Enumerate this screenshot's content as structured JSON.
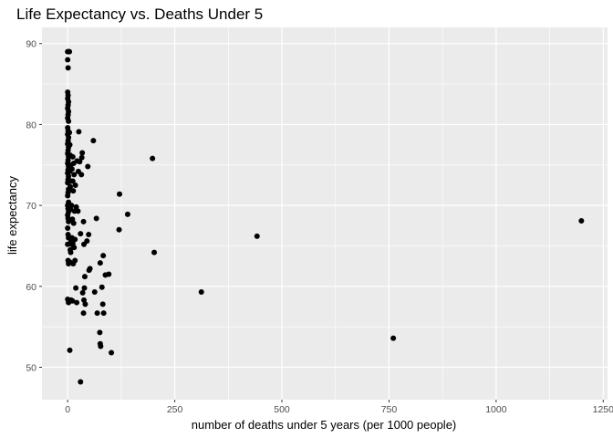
{
  "chart_data": {
    "type": "scatter",
    "title": "Life Expectancy vs. Deaths Under 5",
    "xlabel": "number of deaths under 5 years (per 1000 people)",
    "ylabel": "life expectancy",
    "xlim": [
      -60,
      1260
    ],
    "ylim": [
      46,
      92
    ],
    "xticks": [
      0,
      250,
      500,
      750,
      1000,
      1250
    ],
    "xtick_labels": [
      "0",
      "250",
      "500",
      "750",
      "1000",
      "1250"
    ],
    "yticks": [
      50,
      60,
      70,
      80,
      90
    ],
    "ytick_labels": [
      "50",
      "60",
      "70",
      "80",
      "90"
    ],
    "grid": true,
    "panel_color": "#ebebeb",
    "point_color": "#000000",
    "points": [
      {
        "x": 0,
        "y": 89.0
      },
      {
        "x": 2,
        "y": 89.0
      },
      {
        "x": 4,
        "y": 89.0
      },
      {
        "x": 0,
        "y": 88.0
      },
      {
        "x": 1,
        "y": 87.0
      },
      {
        "x": 0,
        "y": 84.0
      },
      {
        "x": 1,
        "y": 83.6
      },
      {
        "x": 0,
        "y": 83.2
      },
      {
        "x": 2,
        "y": 82.8
      },
      {
        "x": 1,
        "y": 82.4
      },
      {
        "x": 0,
        "y": 82.0
      },
      {
        "x": 2,
        "y": 81.6
      },
      {
        "x": 1,
        "y": 81.2
      },
      {
        "x": 0,
        "y": 80.8
      },
      {
        "x": 2,
        "y": 80.4
      },
      {
        "x": 0,
        "y": 79.6
      },
      {
        "x": 1,
        "y": 79.2
      },
      {
        "x": 0,
        "y": 78.8
      },
      {
        "x": 2,
        "y": 78.4
      },
      {
        "x": 1,
        "y": 78.0
      },
      {
        "x": 0,
        "y": 77.6
      },
      {
        "x": 2,
        "y": 77.2
      },
      {
        "x": 1,
        "y": 76.8
      },
      {
        "x": 0,
        "y": 76.4
      },
      {
        "x": 2,
        "y": 76.0
      },
      {
        "x": 1,
        "y": 75.6
      },
      {
        "x": 0,
        "y": 75.2
      },
      {
        "x": 2,
        "y": 74.8
      },
      {
        "x": 1,
        "y": 74.4
      },
      {
        "x": 0,
        "y": 74.0
      },
      {
        "x": 2,
        "y": 73.6
      },
      {
        "x": 1,
        "y": 73.2
      },
      {
        "x": 0,
        "y": 72.8
      },
      {
        "x": 2,
        "y": 72.0
      },
      {
        "x": 1,
        "y": 71.6
      },
      {
        "x": 0,
        "y": 71.2
      },
      {
        "x": 2,
        "y": 70.4
      },
      {
        "x": 0,
        "y": 70.0
      },
      {
        "x": 1,
        "y": 69.6
      },
      {
        "x": 2,
        "y": 69.2
      },
      {
        "x": 0,
        "y": 68.8
      },
      {
        "x": 1,
        "y": 68.4
      },
      {
        "x": 2,
        "y": 68.0
      },
      {
        "x": 0,
        "y": 67.2
      },
      {
        "x": 1,
        "y": 66.4
      },
      {
        "x": 2,
        "y": 66.0
      },
      {
        "x": 0,
        "y": 65.2
      },
      {
        "x": 1,
        "y": 63.2
      },
      {
        "x": 2,
        "y": 62.8
      },
      {
        "x": 0,
        "y": 58.4
      },
      {
        "x": 2,
        "y": 58.0
      },
      {
        "x": 4,
        "y": 79.0
      },
      {
        "x": 5,
        "y": 77.5
      },
      {
        "x": 6,
        "y": 76.2
      },
      {
        "x": 7,
        "y": 75.0
      },
      {
        "x": 5,
        "y": 74.2
      },
      {
        "x": 8,
        "y": 73.0
      },
      {
        "x": 6,
        "y": 72.3
      },
      {
        "x": 9,
        "y": 70.0
      },
      {
        "x": 7,
        "y": 69.5
      },
      {
        "x": 4,
        "y": 66.0
      },
      {
        "x": 8,
        "y": 65.6
      },
      {
        "x": 9,
        "y": 65.2
      },
      {
        "x": 6,
        "y": 64.5
      },
      {
        "x": 7,
        "y": 64.2
      },
      {
        "x": 5,
        "y": 63.0
      },
      {
        "x": 8,
        "y": 58.3
      },
      {
        "x": 5,
        "y": 52.1
      },
      {
        "x": 12,
        "y": 76.0
      },
      {
        "x": 14,
        "y": 75.2
      },
      {
        "x": 10,
        "y": 74.5
      },
      {
        "x": 15,
        "y": 73.8
      },
      {
        "x": 12,
        "y": 73.0
      },
      {
        "x": 18,
        "y": 72.5
      },
      {
        "x": 13,
        "y": 71.8
      },
      {
        "x": 16,
        "y": 69.3
      },
      {
        "x": 11,
        "y": 68.3
      },
      {
        "x": 14,
        "y": 67.8
      },
      {
        "x": 10,
        "y": 66.0
      },
      {
        "x": 17,
        "y": 65.8
      },
      {
        "x": 12,
        "y": 65.3
      },
      {
        "x": 15,
        "y": 64.8
      },
      {
        "x": 13,
        "y": 62.8
      },
      {
        "x": 17,
        "y": 63.2
      },
      {
        "x": 19,
        "y": 59.8
      },
      {
        "x": 11,
        "y": 58.2
      },
      {
        "x": 22,
        "y": 75.5
      },
      {
        "x": 28,
        "y": 75.4
      },
      {
        "x": 25,
        "y": 74.2
      },
      {
        "x": 20,
        "y": 69.8
      },
      {
        "x": 24,
        "y": 69.3
      },
      {
        "x": 30,
        "y": 66.5
      },
      {
        "x": 21,
        "y": 58.0
      },
      {
        "x": 26,
        "y": 79.1
      },
      {
        "x": 34,
        "y": 76.5
      },
      {
        "x": 33,
        "y": 75.9
      },
      {
        "x": 32,
        "y": 73.8
      },
      {
        "x": 37,
        "y": 68.0
      },
      {
        "x": 38,
        "y": 65.2
      },
      {
        "x": 35,
        "y": 59.2
      },
      {
        "x": 39,
        "y": 59.8
      },
      {
        "x": 38,
        "y": 58.3
      },
      {
        "x": 41,
        "y": 57.8
      },
      {
        "x": 37,
        "y": 56.7
      },
      {
        "x": 30,
        "y": 48.2
      },
      {
        "x": 40,
        "y": 61.2
      },
      {
        "x": 47,
        "y": 74.8
      },
      {
        "x": 45,
        "y": 65.6
      },
      {
        "x": 49,
        "y": 66.4
      },
      {
        "x": 52,
        "y": 62.2
      },
      {
        "x": 50,
        "y": 62.0
      },
      {
        "x": 60,
        "y": 78.0
      },
      {
        "x": 63,
        "y": 59.3
      },
      {
        "x": 67,
        "y": 68.4
      },
      {
        "x": 69,
        "y": 56.7
      },
      {
        "x": 76,
        "y": 62.9
      },
      {
        "x": 75,
        "y": 54.3
      },
      {
        "x": 76,
        "y": 52.9
      },
      {
        "x": 77,
        "y": 52.6
      },
      {
        "x": 83,
        "y": 63.8
      },
      {
        "x": 80,
        "y": 59.9
      },
      {
        "x": 82,
        "y": 57.8
      },
      {
        "x": 84,
        "y": 56.7
      },
      {
        "x": 88,
        "y": 61.4
      },
      {
        "x": 96,
        "y": 61.5
      },
      {
        "x": 102,
        "y": 51.8
      },
      {
        "x": 121,
        "y": 71.4
      },
      {
        "x": 120,
        "y": 67.0
      },
      {
        "x": 140,
        "y": 68.9
      },
      {
        "x": 198,
        "y": 75.8
      },
      {
        "x": 202,
        "y": 64.2
      },
      {
        "x": 312,
        "y": 59.3
      },
      {
        "x": 442,
        "y": 66.2
      },
      {
        "x": 760,
        "y": 53.6
      },
      {
        "x": 1199,
        "y": 68.1
      }
    ]
  }
}
